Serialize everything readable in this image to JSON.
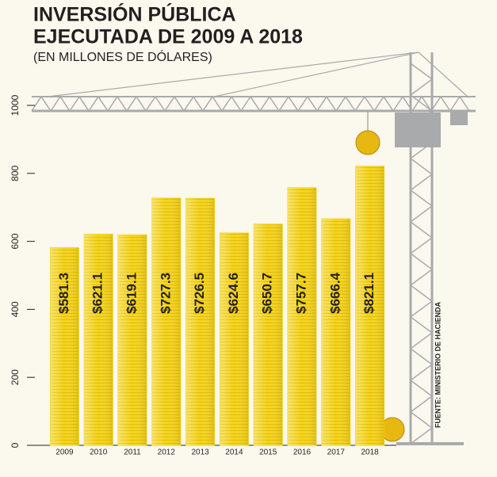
{
  "chart_data": {
    "type": "bar",
    "title": [
      "INVERSIÓN PÚBLICA",
      "EJECUTADA DE 2009 A 2018"
    ],
    "subtitle": "(EN MILLONES DE DÓLARES)",
    "source": "FUENTE: MINISTERIO DE HACIENDA",
    "categories": [
      "2009",
      "2010",
      "2011",
      "2012",
      "2013",
      "2014",
      "2015",
      "2016",
      "2017",
      "2018"
    ],
    "values": [
      581.3,
      621.1,
      619.1,
      727.3,
      726.5,
      624.6,
      650.7,
      757.7,
      666.4,
      821.1
    ],
    "value_labels": [
      "$581.3",
      "$621.1",
      "$619.1",
      "$727.3",
      "$726.5",
      "$624.6",
      "$650.7",
      "$757.7",
      "$666.4",
      "$821.1"
    ],
    "color": "#f4d418",
    "ylim": [
      0,
      1000
    ],
    "yticks": [
      0,
      200,
      400,
      600,
      800,
      1000
    ]
  }
}
